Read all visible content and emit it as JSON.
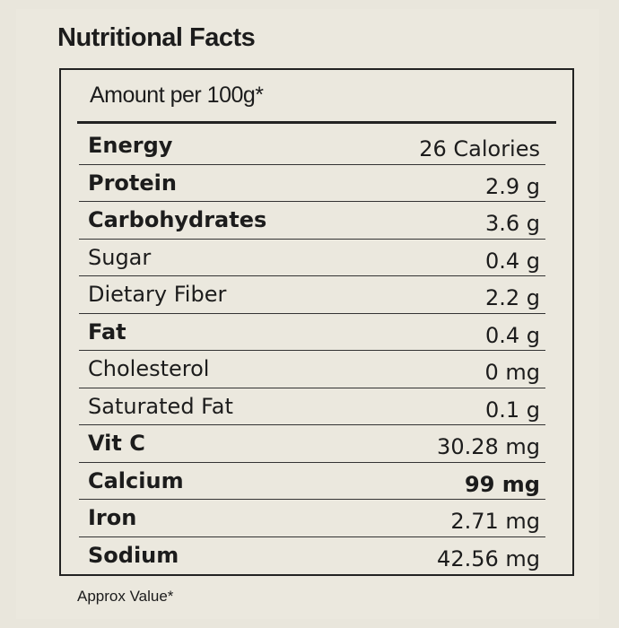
{
  "title": "Nutritional Facts",
  "table": {
    "header": "Amount per 100g*",
    "rows": [
      [
        "Energy",
        "26 Calories"
      ],
      [
        "Protein",
        "2.9 g"
      ],
      [
        "Carbohydrates",
        "3.6 g"
      ],
      [
        "Sugar",
        "0.4 g"
      ],
      [
        "Dietary Fiber",
        "2.2 g"
      ],
      [
        "Fat",
        "0.4 g"
      ],
      [
        "Cholesterol",
        "0 mg"
      ],
      [
        "Saturated Fat",
        "0.1 g"
      ],
      [
        "Vit C",
        "30.28 mg"
      ],
      [
        "Calcium",
        "99 mg"
      ],
      [
        "Iron",
        "2.71 mg"
      ],
      [
        "Sodium",
        "42.56 mg"
      ]
    ]
  },
  "footnote": "Approx Value*"
}
